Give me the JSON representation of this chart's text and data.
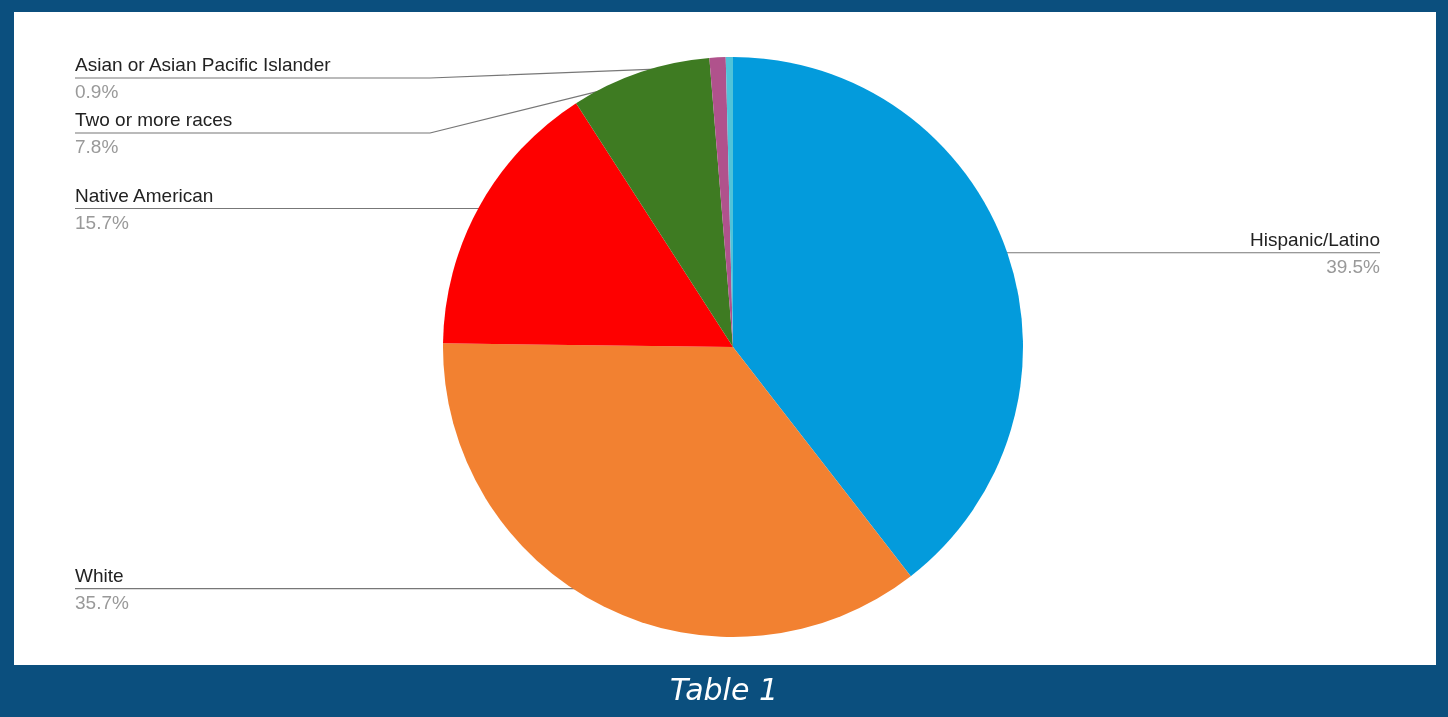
{
  "chart_data": {
    "type": "pie",
    "categories": [
      "Hispanic/Latino",
      "White",
      "Native American",
      "Two or more races",
      "Asian or Asian Pacific Islander",
      null
    ],
    "values": [
      39.5,
      35.7,
      15.7,
      7.8,
      0.9,
      0.4
    ],
    "value_labels": [
      "39.5%",
      "35.7%",
      "15.7%",
      "7.8%",
      "0.9%",
      null
    ],
    "colors": [
      "#039bdc",
      "#f28131",
      "#fe0000",
      "#3e7b22",
      "#b0528c",
      "#4fc3d9"
    ],
    "annotations": [
      "Table 1"
    ]
  }
}
